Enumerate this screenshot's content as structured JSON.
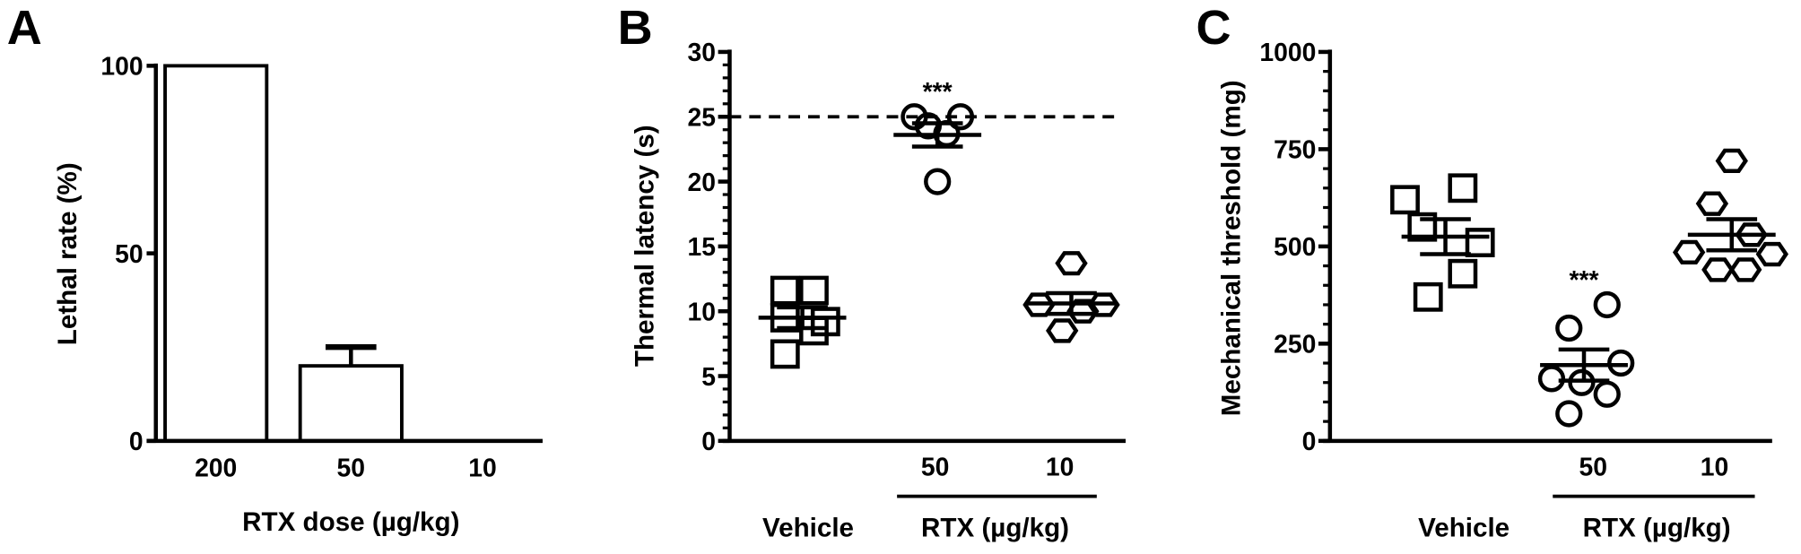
{
  "chart_data": [
    {
      "panel": "A",
      "type": "bar",
      "categories": [
        "200",
        "50",
        "10"
      ],
      "values": [
        100,
        20,
        0
      ],
      "error_upper": [
        null,
        25,
        null
      ],
      "xlabel": "RTX dose (µg/kg)",
      "ylabel": "Lethal rate (%)",
      "ylim": [
        0,
        100
      ],
      "yticks": [
        "0",
        "50",
        "100"
      ],
      "grid": false
    },
    {
      "panel": "B",
      "type": "scatter",
      "groups": [
        {
          "label": "Vehicle",
          "tick": "",
          "marker": "square",
          "values": [
            11.6,
            11.6,
            9.5,
            9.2,
            8.5,
            6.7
          ],
          "mean": 9.5,
          "sem": 0.8
        },
        {
          "label": "RTX 50",
          "tick": "50",
          "marker": "circle",
          "values": [
            25,
            24.3,
            23.7,
            25,
            20
          ],
          "mean": 23.6,
          "sem": 0.9,
          "annotation": "***"
        },
        {
          "label": "RTX 10",
          "tick": "10",
          "marker": "hexagon",
          "values": [
            13.7,
            10.5,
            10.5,
            10.0,
            8.5
          ],
          "mean": 10.6,
          "sem": 0.8
        }
      ],
      "group_labels": {
        "vehicle": "Vehicle",
        "rtx": "RTX (µg/kg)"
      },
      "ylabel": "Thermal latency (s)",
      "ylim": [
        0,
        30
      ],
      "yticks": [
        "0",
        "5",
        "10",
        "15",
        "20",
        "25",
        "30"
      ],
      "reference_line": 25,
      "grid": false
    },
    {
      "panel": "C",
      "type": "scatter",
      "groups": [
        {
          "label": "Vehicle",
          "tick": "",
          "marker": "square",
          "values": [
            620,
            650,
            550,
            510,
            430,
            370
          ],
          "mean": 525,
          "sem": 45
        },
        {
          "label": "RTX 50",
          "tick": "50",
          "marker": "circle",
          "values": [
            350,
            290,
            200,
            160,
            150,
            120,
            70
          ],
          "mean": 195,
          "sem": 40,
          "annotation": "***"
        },
        {
          "label": "RTX 10",
          "tick": "10",
          "marker": "hexagon",
          "values": [
            720,
            610,
            530,
            485,
            480,
            440,
            440
          ],
          "mean": 530,
          "sem": 40
        }
      ],
      "group_labels": {
        "vehicle": "Vehicle",
        "rtx": "RTX (µg/kg)"
      },
      "ylabel": "Mechanical threshold (mg)",
      "ylim": [
        0,
        1000
      ],
      "yticks": [
        "0",
        "250",
        "500",
        "750",
        "1000"
      ],
      "grid": false
    }
  ]
}
